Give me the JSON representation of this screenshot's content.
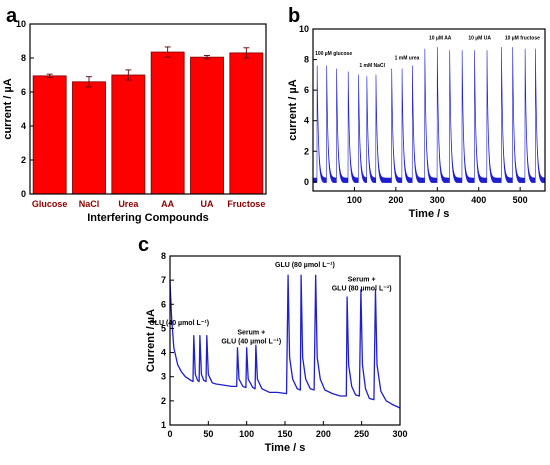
{
  "chart_data": [
    {
      "panel": "a",
      "type": "bar",
      "categories": [
        "Glucose",
        "NaCl",
        "Urea",
        "AA",
        "UA",
        "Fructose"
      ],
      "values": [
        6.95,
        6.6,
        7.0,
        8.35,
        8.05,
        8.3
      ],
      "errors": [
        0.1,
        0.3,
        0.3,
        0.3,
        0.1,
        0.3
      ],
      "xlabel": "Interfering Compounds",
      "ylabel": "current / µA",
      "ylim": [
        0,
        10
      ],
      "yticks": [
        0,
        2,
        4,
        6,
        8,
        10
      ],
      "bar_color": "#ff0000",
      "grid": false
    },
    {
      "panel": "b",
      "type": "line",
      "xlabel": "Time / s",
      "ylabel": "current / µA",
      "xlim": [
        0,
        560
      ],
      "ylim": [
        -0.6,
        10
      ],
      "xticks": [
        100,
        200,
        300,
        400,
        500
      ],
      "yticks": [
        0,
        2,
        4,
        6,
        8,
        10
      ],
      "line_color": "#1f1fd0",
      "baseline": 0.25,
      "peaks": [
        {
          "t": 10,
          "h": 7.6
        },
        {
          "t": 33,
          "h": 7.6
        },
        {
          "t": 57,
          "h": 7.4
        },
        {
          "t": 85,
          "h": 7.2
        },
        {
          "t": 110,
          "h": 7.0
        },
        {
          "t": 130,
          "h": 6.9
        },
        {
          "t": 152,
          "h": 7.0
        },
        {
          "t": 190,
          "h": 7.4
        },
        {
          "t": 215,
          "h": 7.4
        },
        {
          "t": 240,
          "h": 7.6
        },
        {
          "t": 270,
          "h": 8.7
        },
        {
          "t": 300,
          "h": 8.8
        },
        {
          "t": 330,
          "h": 8.6
        },
        {
          "t": 360,
          "h": 8.6
        },
        {
          "t": 390,
          "h": 8.6
        },
        {
          "t": 420,
          "h": 8.6
        },
        {
          "t": 455,
          "h": 8.8
        },
        {
          "t": 482,
          "h": 8.8
        },
        {
          "t": 512,
          "h": 8.7
        },
        {
          "t": 537,
          "h": 8.7
        }
      ],
      "annotations": [
        {
          "text": "100 µM glucose",
          "x": 5,
          "y": 8.3
        },
        {
          "text": "1 mM NaCl",
          "x": 112,
          "y": 7.5
        },
        {
          "text": "1 mM urea",
          "x": 197,
          "y": 8.0
        },
        {
          "text": "10 µM AA",
          "x": 280,
          "y": 9.3
        },
        {
          "text": "10 µM UA",
          "x": 375,
          "y": 9.3
        },
        {
          "text": "10 µM fructose",
          "x": 463,
          "y": 9.3
        }
      ]
    },
    {
      "panel": "c",
      "type": "line",
      "xlabel": "Time / s",
      "ylabel": "Current / µA",
      "xlim": [
        0,
        300
      ],
      "ylim": [
        1,
        8
      ],
      "xticks": [
        0,
        50,
        100,
        150,
        200,
        250,
        300
      ],
      "yticks": [
        1,
        2,
        3,
        4,
        5,
        6,
        7,
        8
      ],
      "line_color": "#1f1fd0",
      "points": [
        [
          0,
          7.0
        ],
        [
          2,
          5.5
        ],
        [
          5,
          4.2
        ],
        [
          10,
          3.5
        ],
        [
          15,
          3.2
        ],
        [
          20,
          3.0
        ],
        [
          27,
          2.85
        ],
        [
          30,
          2.8
        ],
        [
          31,
          4.7
        ],
        [
          33,
          3.1
        ],
        [
          36,
          2.85
        ],
        [
          38,
          2.8
        ],
        [
          39,
          4.7
        ],
        [
          41,
          3.1
        ],
        [
          44,
          2.85
        ],
        [
          47,
          2.8
        ],
        [
          48,
          4.7
        ],
        [
          50,
          3.1
        ],
        [
          55,
          2.75
        ],
        [
          60,
          2.7
        ],
        [
          70,
          2.65
        ],
        [
          80,
          2.6
        ],
        [
          87,
          2.6
        ],
        [
          88,
          4.2
        ],
        [
          90,
          2.9
        ],
        [
          95,
          2.6
        ],
        [
          99,
          2.55
        ],
        [
          100,
          4.2
        ],
        [
          102,
          2.9
        ],
        [
          108,
          2.55
        ],
        [
          111,
          2.5
        ],
        [
          112,
          4.3
        ],
        [
          114,
          2.9
        ],
        [
          120,
          2.5
        ],
        [
          130,
          2.35
        ],
        [
          140,
          2.35
        ],
        [
          152,
          2.3
        ],
        [
          154,
          7.2
        ],
        [
          156,
          3.8
        ],
        [
          160,
          2.9
        ],
        [
          166,
          2.5
        ],
        [
          170,
          2.45
        ],
        [
          171,
          7.2
        ],
        [
          173,
          3.8
        ],
        [
          177,
          2.9
        ],
        [
          183,
          2.5
        ],
        [
          188,
          2.45
        ],
        [
          190,
          7.2
        ],
        [
          192,
          3.8
        ],
        [
          196,
          2.9
        ],
        [
          202,
          2.45
        ],
        [
          212,
          2.3
        ],
        [
          222,
          2.2
        ],
        [
          230,
          2.2
        ],
        [
          231,
          6.3
        ],
        [
          233,
          3.5
        ],
        [
          237,
          2.6
        ],
        [
          242,
          2.25
        ],
        [
          247,
          2.2
        ],
        [
          249,
          6.6
        ],
        [
          251,
          3.5
        ],
        [
          255,
          2.5
        ],
        [
          260,
          2.1
        ],
        [
          266,
          2.05
        ],
        [
          268,
          6.6
        ],
        [
          270,
          3.5
        ],
        [
          275,
          2.4
        ],
        [
          282,
          2.0
        ],
        [
          290,
          1.85
        ],
        [
          297,
          1.75
        ],
        [
          300,
          1.7
        ]
      ],
      "annotations": [
        {
          "lines": [
            "GLU (40 µmol L⁻¹)"
          ],
          "x": 12,
          "y": 5.15
        },
        {
          "lines": [
            "Serum +",
            "GLU (40 µmol L⁻¹)"
          ],
          "x": 106,
          "y": 4.75
        },
        {
          "lines": [
            "GLU (80 µmol L⁻¹)"
          ],
          "x": 176,
          "y": 7.55
        },
        {
          "lines": [
            "Serum +",
            "GLU (80 µmol L⁻¹)"
          ],
          "x": 250,
          "y": 6.95
        }
      ]
    }
  ]
}
